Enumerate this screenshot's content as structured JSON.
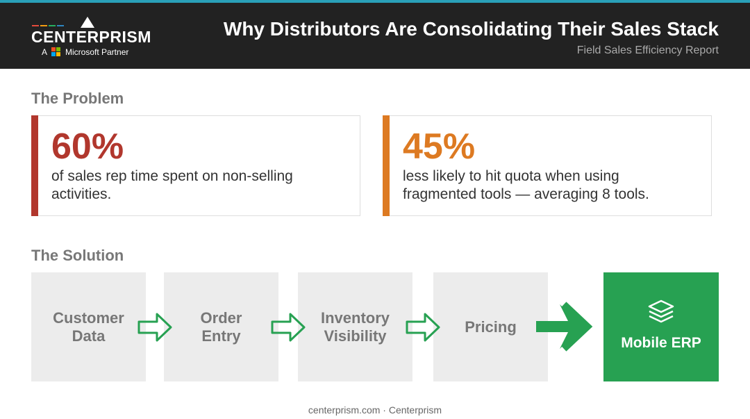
{
  "header": {
    "logo": {
      "name": "CENTERPRISM",
      "prefix": "A",
      "partner": "Microsoft Partner"
    },
    "title": "Why Distributors Are Consolidating Their Sales Stack",
    "subtitle": "Field Sales Efficiency Report"
  },
  "problem": {
    "heading": "The Problem",
    "cards": [
      {
        "stat": "60%",
        "text": "of sales rep time spent on non-selling activities.",
        "color": "#b1372d"
      },
      {
        "stat": "45%",
        "text": "less likely to hit quota when using fragmented tools — averaging 8 tools.",
        "color": "#dd7a22"
      }
    ]
  },
  "solution": {
    "heading": "The Solution",
    "steps": [
      "Customer Data",
      "Order Entry",
      "Inventory Visibility",
      "Pricing"
    ],
    "result": "Mobile ERP"
  },
  "footer": "centerprism.com · Centerprism"
}
